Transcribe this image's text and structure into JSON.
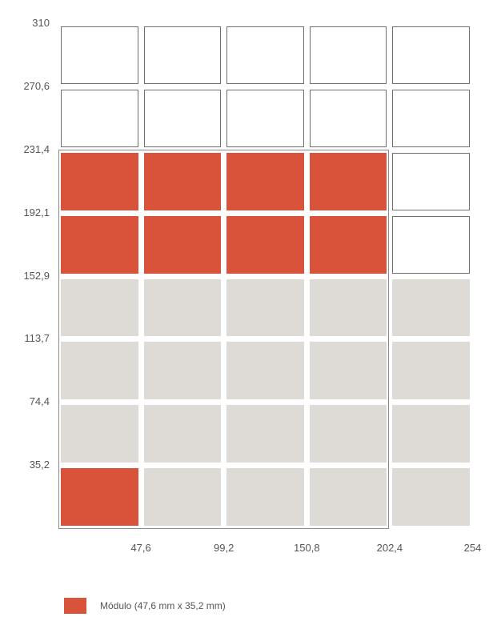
{
  "colors": {
    "module": "#d9533a",
    "reserved": "#dedad5",
    "empty": "#ffffff",
    "outline": "#6e6e6e",
    "text": "#555555"
  },
  "chart_data": {
    "type": "heatmap",
    "title": "",
    "xlabel": "",
    "ylabel": "",
    "x_ticks": [
      "47,6",
      "99,2",
      "150,8",
      "202,4",
      "254"
    ],
    "y_ticks": [
      "310",
      "270,6",
      "231,4",
      "192,1",
      "152,9",
      "113,7",
      "74,4",
      "35,2"
    ],
    "columns": 5,
    "rows": 8,
    "cell_states_top_to_bottom": [
      [
        "empty",
        "empty",
        "empty",
        "empty",
        "empty"
      ],
      [
        "empty",
        "empty",
        "empty",
        "empty",
        "empty"
      ],
      [
        "module",
        "module",
        "module",
        "module",
        "empty"
      ],
      [
        "module",
        "module",
        "module",
        "module",
        "empty"
      ],
      [
        "reserved",
        "reserved",
        "reserved",
        "reserved",
        "reserved"
      ],
      [
        "reserved",
        "reserved",
        "reserved",
        "reserved",
        "reserved"
      ],
      [
        "reserved",
        "reserved",
        "reserved",
        "reserved",
        "reserved"
      ],
      [
        "module",
        "reserved",
        "reserved",
        "reserved",
        "reserved"
      ]
    ]
  },
  "legend": {
    "label": "Módulo (47,6 mm x 35,2 mm)"
  }
}
